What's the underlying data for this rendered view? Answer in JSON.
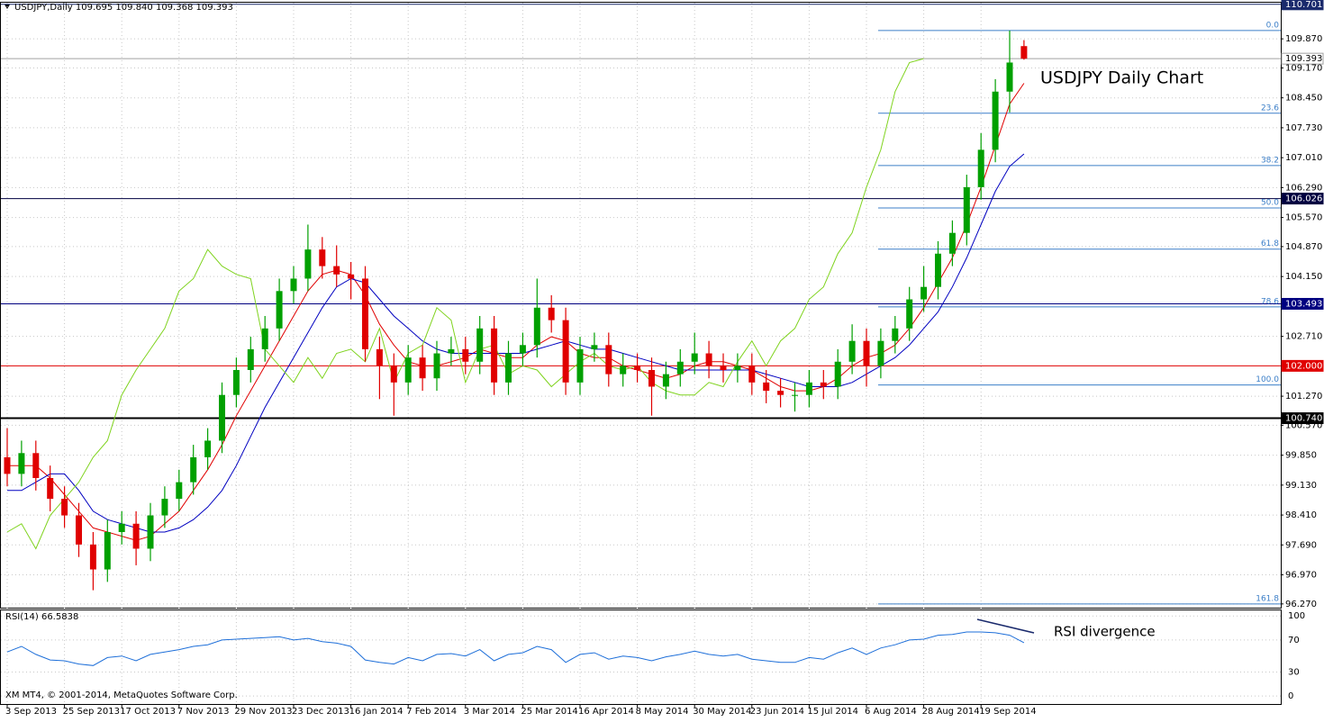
{
  "chart_data": [
    {
      "type": "candlestick",
      "title": "USDJPY Daily Chart",
      "subtitle": "USDJPY,Daily 109.695 109.840 109.368 109.393",
      "footer": "XM MT4, © 2001-2014, MetaQuotes Software Corp.",
      "categories": [
        "3 Sep 2013",
        null,
        null,
        null,
        "25 Sep 2013",
        null,
        null,
        null,
        "17 Oct 2013",
        null,
        null,
        null,
        "7 Nov 2013",
        null,
        null,
        null,
        "29 Nov 2013",
        null,
        null,
        null,
        "23 Dec 2013",
        null,
        null,
        null,
        "16 Jan 2014",
        null,
        null,
        null,
        "7 Feb 2014",
        null,
        null,
        null,
        "3 Mar 2014",
        null,
        null,
        null,
        "25 Mar 2014",
        null,
        null,
        null,
        "16 Apr 2014",
        null,
        null,
        null,
        "8 May 2014",
        null,
        null,
        null,
        "30 May 2014",
        null,
        null,
        null,
        "23 Jun 2014",
        null,
        null,
        null,
        "15 Jul 2014",
        null,
        null,
        null,
        "6 Aug 2014",
        null,
        null,
        null,
        "28 Aug 2014",
        null,
        null,
        null,
        "19 Sep 2014",
        null,
        null,
        null
      ],
      "open": [
        99.8,
        99.4,
        99.9,
        99.3,
        98.8,
        98.4,
        97.7,
        97.1,
        98.0,
        98.2,
        97.6,
        98.4,
        98.8,
        99.2,
        99.8,
        100.2,
        101.3,
        101.9,
        102.4,
        102.9,
        103.8,
        104.1,
        104.8,
        104.4,
        104.2,
        104.1,
        102.4,
        102.0,
        101.6,
        102.2,
        101.7,
        102.3,
        102.4,
        102.1,
        102.9,
        101.6,
        102.3,
        102.5,
        103.4,
        103.1,
        101.6,
        102.4,
        102.5,
        101.8,
        102.0,
        101.9,
        101.5,
        101.8,
        102.1,
        102.3,
        102.0,
        101.9,
        102.0,
        101.6,
        101.4,
        101.3,
        101.3,
        101.6,
        101.5,
        102.1,
        102.6,
        102.0,
        102.6,
        102.9,
        103.6,
        103.9,
        104.7,
        105.2,
        106.3,
        107.2,
        108.6,
        109.695
      ],
      "high": [
        100.5,
        100.2,
        100.2,
        99.6,
        99.1,
        98.7,
        98.0,
        98.3,
        98.5,
        98.5,
        98.7,
        99.1,
        99.5,
        100.1,
        100.5,
        101.6,
        102.2,
        102.7,
        103.2,
        104.1,
        104.4,
        105.4,
        105.1,
        104.9,
        104.5,
        104.4,
        102.7,
        102.3,
        102.5,
        102.5,
        102.6,
        102.7,
        102.7,
        103.2,
        103.2,
        102.6,
        102.8,
        104.1,
        103.7,
        103.4,
        102.7,
        102.8,
        102.8,
        102.3,
        102.3,
        102.2,
        102.1,
        102.4,
        102.8,
        102.6,
        102.3,
        102.3,
        102.3,
        101.9,
        101.7,
        101.6,
        101.9,
        101.9,
        102.4,
        103.0,
        102.9,
        102.9,
        103.2,
        103.9,
        104.4,
        105.0,
        105.5,
        106.6,
        107.6,
        108.9,
        110.07,
        109.84
      ],
      "low": [
        99.1,
        99.1,
        99.0,
        98.5,
        98.1,
        97.4,
        96.6,
        96.8,
        97.7,
        97.2,
        97.3,
        98.1,
        98.5,
        98.9,
        99.5,
        99.9,
        101.0,
        101.6,
        102.1,
        102.6,
        103.5,
        103.8,
        104.1,
        103.9,
        103.6,
        102.1,
        101.2,
        100.8,
        101.3,
        101.4,
        101.4,
        102.0,
        101.8,
        101.8,
        101.3,
        101.3,
        102.0,
        102.2,
        102.8,
        101.3,
        101.3,
        102.1,
        101.5,
        101.5,
        101.6,
        100.8,
        101.2,
        101.5,
        101.8,
        101.7,
        101.6,
        101.6,
        101.3,
        101.1,
        101.0,
        100.9,
        101.0,
        101.2,
        101.2,
        101.8,
        101.5,
        101.7,
        102.3,
        102.6,
        103.3,
        103.6,
        104.4,
        104.9,
        106.0,
        106.9,
        108.1,
        109.368
      ],
      "close": [
        99.4,
        99.9,
        99.3,
        98.8,
        98.4,
        97.7,
        97.1,
        98.0,
        98.2,
        97.6,
        98.4,
        98.8,
        99.2,
        99.8,
        100.2,
        101.3,
        101.9,
        102.4,
        102.9,
        103.8,
        104.1,
        104.8,
        104.4,
        104.2,
        104.1,
        102.4,
        102.0,
        101.6,
        102.2,
        101.7,
        102.3,
        102.4,
        102.1,
        102.9,
        101.6,
        102.3,
        102.5,
        103.4,
        103.1,
        101.6,
        102.4,
        102.5,
        101.8,
        102.0,
        101.9,
        101.5,
        101.8,
        102.1,
        102.3,
        102.0,
        101.9,
        102.0,
        101.6,
        101.4,
        101.3,
        101.3,
        101.6,
        101.5,
        102.1,
        102.6,
        102.0,
        102.6,
        102.9,
        103.6,
        103.9,
        104.7,
        105.2,
        106.3,
        107.2,
        108.6,
        109.3,
        109.393
      ],
      "up_color": "#00a000",
      "down_color": "#e00000",
      "series": [
        {
          "color": "#e00000",
          "values": [
            99.6,
            99.6,
            99.6,
            99.3,
            98.9,
            98.5,
            98.1,
            98.0,
            97.9,
            97.8,
            97.9,
            98.2,
            98.5,
            99.0,
            99.5,
            100.1,
            100.8,
            101.4,
            102.0,
            102.6,
            103.2,
            103.8,
            104.2,
            104.3,
            104.2,
            103.7,
            103.0,
            102.5,
            102.1,
            102.0,
            102.0,
            102.1,
            102.2,
            102.4,
            102.3,
            102.2,
            102.2,
            102.5,
            102.7,
            102.6,
            102.3,
            102.2,
            102.2,
            102.0,
            101.9,
            101.8,
            101.7,
            101.8,
            102.0,
            102.1,
            102.1,
            102.0,
            101.9,
            101.7,
            101.5,
            101.4,
            101.4,
            101.5,
            101.7,
            102.0,
            102.2,
            102.3,
            102.5,
            102.9,
            103.4,
            104.0,
            104.6,
            105.4,
            106.3,
            107.3,
            108.3,
            108.8
          ]
        },
        {
          "color": "#0000c0",
          "values": [
            99.0,
            99.0,
            99.2,
            99.4,
            99.4,
            99.0,
            98.5,
            98.3,
            98.2,
            98.1,
            98.0,
            98.0,
            98.1,
            98.3,
            98.6,
            99.0,
            99.6,
            100.3,
            101.0,
            101.6,
            102.2,
            102.8,
            103.4,
            103.9,
            104.1,
            104.0,
            103.6,
            103.2,
            102.9,
            102.6,
            102.4,
            102.3,
            102.3,
            102.3,
            102.3,
            102.3,
            102.3,
            102.4,
            102.5,
            102.6,
            102.5,
            102.4,
            102.4,
            102.3,
            102.2,
            102.1,
            102.0,
            101.9,
            101.9,
            101.9,
            101.9,
            101.9,
            101.9,
            101.8,
            101.7,
            101.6,
            101.5,
            101.5,
            101.5,
            101.6,
            101.8,
            102.0,
            102.2,
            102.5,
            102.9,
            103.3,
            103.9,
            104.6,
            105.4,
            106.2,
            106.8,
            107.1
          ]
        },
        {
          "color": "#7fd31e",
          "values": [
            98.0,
            98.2,
            97.6,
            98.4,
            98.8,
            99.2,
            99.8,
            100.2,
            101.3,
            101.9,
            102.4,
            102.9,
            103.8,
            104.1,
            104.8,
            104.4,
            104.2,
            104.1,
            102.4,
            102.0,
            101.6,
            102.2,
            101.7,
            102.3,
            102.4,
            102.1,
            102.9,
            101.6,
            102.3,
            102.5,
            103.4,
            103.1,
            101.6,
            102.4,
            102.5,
            101.8,
            102.0,
            101.9,
            101.5,
            101.8,
            102.1,
            102.3,
            102.0,
            101.9,
            102.0,
            101.6,
            101.4,
            101.3,
            101.3,
            101.6,
            101.5,
            102.1,
            102.6,
            102.0,
            102.6,
            102.9,
            103.6,
            103.9,
            104.7,
            105.2,
            106.3,
            107.2,
            108.6,
            109.3,
            109.393,
            null,
            null,
            null,
            null,
            null,
            null,
            null
          ]
        }
      ],
      "ylim": [
        96.18,
        110.74
      ],
      "yticks": [
        {
          "value": 109.87,
          "label": "109.870"
        },
        {
          "value": 109.17,
          "label": "109.170"
        },
        {
          "value": 108.45,
          "label": "108.450"
        },
        {
          "value": 107.73,
          "label": "107.730"
        },
        {
          "value": 107.01,
          "label": "107.010"
        },
        {
          "value": 106.29,
          "label": "106.290"
        },
        {
          "value": 105.57,
          "label": "105.570"
        },
        {
          "value": 104.87,
          "label": "104.870"
        },
        {
          "value": 104.15,
          "label": "104.150"
        },
        {
          "value": 102.71,
          "label": "102.710"
        },
        {
          "value": 101.27,
          "label": "101.270"
        },
        {
          "value": 100.57,
          "label": "100.570"
        },
        {
          "value": 99.85,
          "label": "99.850"
        },
        {
          "value": 99.13,
          "label": "99.130"
        },
        {
          "value": 98.41,
          "label": "98.410"
        },
        {
          "value": 97.69,
          "label": "97.690"
        },
        {
          "value": 96.97,
          "label": "96.970"
        },
        {
          "value": 96.27,
          "label": "96.270"
        }
      ],
      "grid": true,
      "hlines": [
        {
          "value": 110.701,
          "label": "110.701",
          "color": "#1a2a6c",
          "text_color": "#ffffff"
        },
        {
          "value": 109.393,
          "label": "109.393",
          "color": "#a0a0a0",
          "text_color": "#000000"
        },
        {
          "value": 106.026,
          "label": "106.026",
          "color": "#000040",
          "text_color": "#ffffff"
        },
        {
          "value": 103.493,
          "label": "103.493",
          "color": "#000080",
          "text_color": "#ffffff"
        },
        {
          "value": 102.0,
          "label": "102.000",
          "color": "#e00000",
          "text_color": "#ffffff"
        },
        {
          "value": 100.74,
          "label": "100.740",
          "color": "#000000",
          "text_color": "#ffffff"
        }
      ],
      "fib_color": "#3c7fc8",
      "fib_levels": [
        {
          "value": 110.07,
          "label": "0.0"
        },
        {
          "value": 108.08,
          "label": "23.6"
        },
        {
          "value": 106.82,
          "label": "38.2"
        },
        {
          "value": 105.8,
          "label": "50.0"
        },
        {
          "value": 104.81,
          "label": "61.8"
        },
        {
          "value": 103.42,
          "label": "78.6"
        },
        {
          "value": 101.54,
          "label": "100.0"
        },
        {
          "value": 96.27,
          "label": "161.8"
        }
      ]
    },
    {
      "type": "line",
      "title": "RSI(14) 66.5838",
      "annotation": "RSI divergence",
      "color": "#1e6fd9",
      "values": [
        55,
        62,
        52,
        45,
        44,
        40,
        38,
        48,
        50,
        44,
        52,
        55,
        58,
        62,
        64,
        70,
        71,
        72,
        73,
        74,
        70,
        72,
        68,
        66,
        62,
        45,
        42,
        40,
        48,
        44,
        52,
        53,
        50,
        58,
        44,
        52,
        54,
        62,
        58,
        42,
        52,
        54,
        46,
        50,
        48,
        44,
        49,
        52,
        56,
        52,
        50,
        52,
        46,
        44,
        42,
        42,
        48,
        46,
        54,
        60,
        52,
        60,
        64,
        70,
        71,
        76,
        77,
        80,
        80,
        79,
        76,
        66.5838
      ],
      "ylim": [
        -10,
        107
      ],
      "yticks": [
        100,
        70,
        30,
        0
      ]
    }
  ]
}
